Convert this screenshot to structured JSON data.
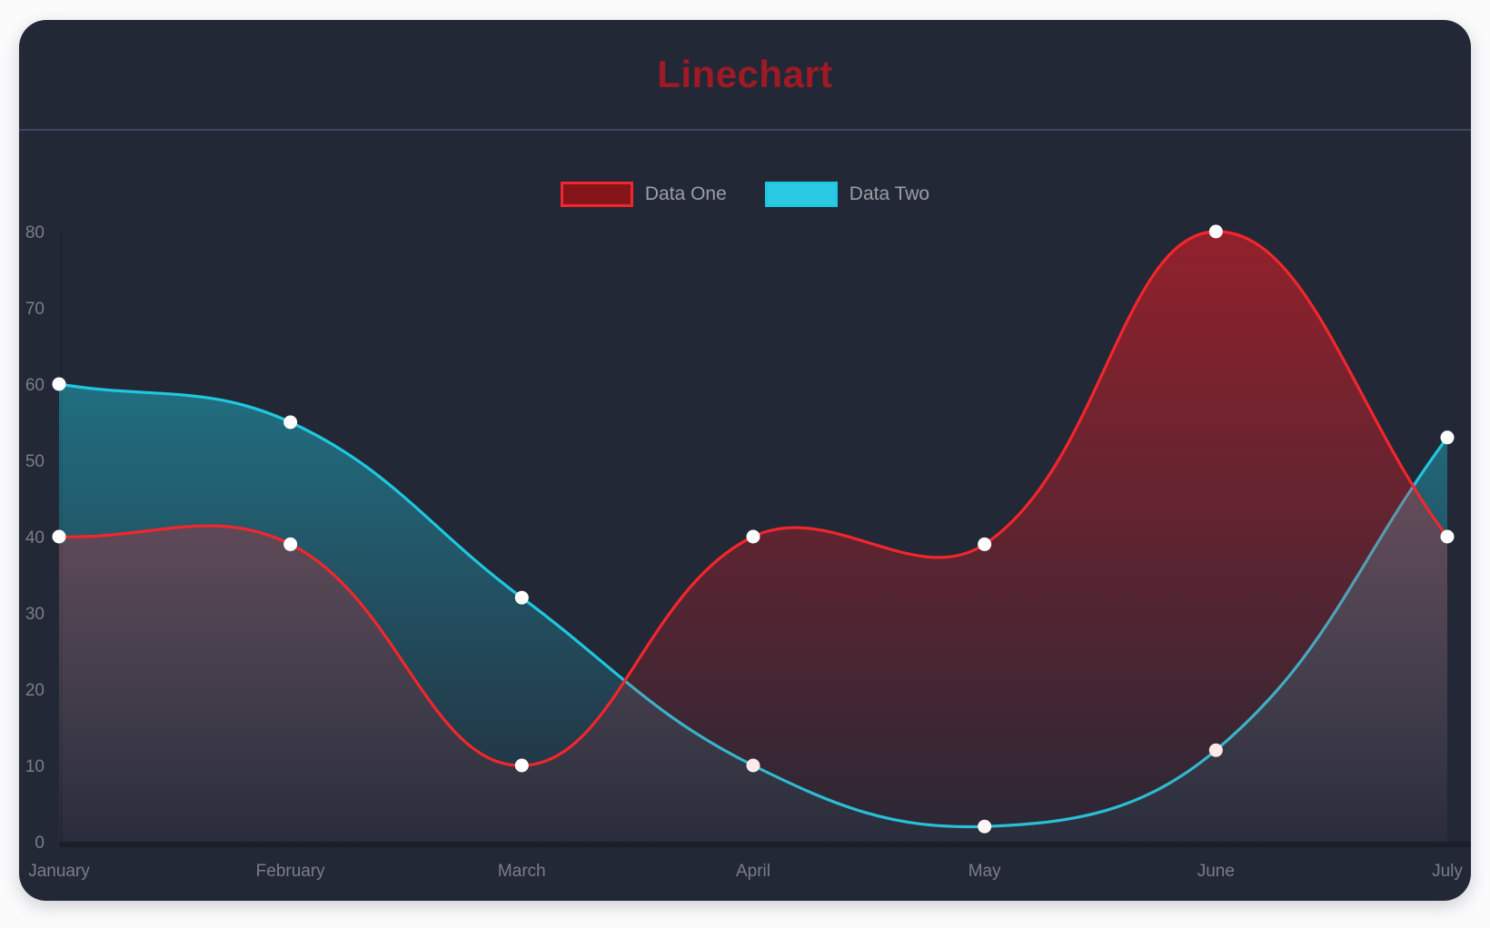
{
  "page": {
    "background": "#fbfbfc"
  },
  "card": {
    "title": "Linechart",
    "title_color": "#9e1a24",
    "background": "#232836",
    "divider_color": "#3c4961"
  },
  "chart_data": {
    "type": "line",
    "title": "Linechart",
    "categories": [
      "January",
      "February",
      "March",
      "April",
      "May",
      "June",
      "July"
    ],
    "series": [
      {
        "name": "Data One",
        "values": [
          40,
          39,
          10,
          40,
          39,
          80,
          40
        ],
        "line_color": "#f3262c",
        "fill_top": "rgba(255,26,33,0.50)",
        "fill_bottom": "rgba(255,26,33,0.03)",
        "point_color": "#ffffff",
        "swatch_fill": "#86141b",
        "swatch_border": "#f3262c"
      },
      {
        "name": "Data Two",
        "values": [
          60,
          55,
          32,
          10,
          2,
          12,
          53
        ],
        "line_color": "#1ec8e0",
        "fill_top": "rgba(30,200,224,0.58)",
        "fill_bottom": "rgba(30,200,224,0.03)",
        "point_color": "#ffffff",
        "swatch_fill": "#2cc9e4",
        "swatch_border": "#1ec8e0"
      }
    ],
    "xlabel": "",
    "ylabel": "",
    "ylim": [
      0,
      80
    ],
    "ytick_step": 10,
    "yticks": [
      0,
      10,
      20,
      30,
      40,
      50,
      60,
      70,
      80
    ],
    "grid": false,
    "legend_position": "top",
    "tick_color": "#7b7e85",
    "x_axis_line_color": "#1a1f2a",
    "y_axis_line_color": "#1d222d",
    "plot_background": "#232836"
  }
}
